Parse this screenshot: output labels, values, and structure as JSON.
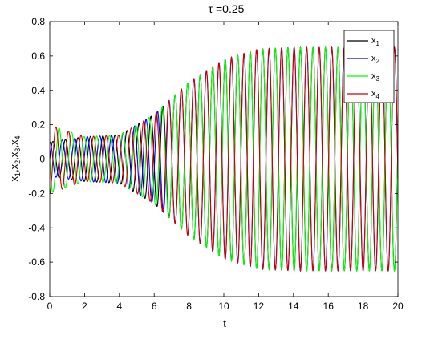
{
  "chart_data": {
    "type": "line",
    "title": "τ =0.25",
    "xlabel": "t",
    "ylabel_parts": [
      "x",
      "1",
      ",x",
      "2",
      ",x",
      "3",
      ",x",
      "4"
    ],
    "xlim": [
      0,
      20
    ],
    "ylim": [
      -0.8,
      0.8
    ],
    "x_ticks": [
      "0",
      "2",
      "4",
      "6",
      "8",
      "10",
      "12",
      "14",
      "16",
      "18",
      "20"
    ],
    "y_ticks": [
      "0.8",
      "0.6",
      "0.4",
      "0.2",
      "0",
      "-0.2",
      "-0.4",
      "-0.6",
      "-0.8"
    ],
    "grid": false,
    "legend_position": "top-right",
    "series": [
      {
        "name": "x1",
        "label_main": "x",
        "label_sub": "1",
        "color": "#000000",
        "t": [
          0,
          2,
          4,
          6,
          8,
          10,
          12,
          14,
          16,
          18,
          20
        ],
        "amplitude": [
          0.1,
          0.13,
          0.14,
          0.26,
          0.45,
          0.58,
          0.64,
          0.65,
          0.65,
          0.65,
          0.65
        ]
      },
      {
        "name": "x2",
        "label_main": "x",
        "label_sub": "2",
        "color": "#0000ff",
        "t": [
          0,
          2,
          4,
          6,
          8,
          10,
          12,
          14,
          16,
          18,
          20
        ],
        "amplitude": [
          0.1,
          0.13,
          0.14,
          0.26,
          0.45,
          0.58,
          0.64,
          0.65,
          0.65,
          0.65,
          0.65
        ]
      },
      {
        "name": "x3",
        "label_main": "x",
        "label_sub": "3",
        "color": "#00ff00",
        "t": [
          0,
          2,
          4,
          6,
          8,
          10,
          12,
          14,
          16,
          18,
          20
        ],
        "amplitude": [
          0.2,
          0.13,
          0.14,
          0.26,
          0.45,
          0.58,
          0.64,
          0.65,
          0.65,
          0.65,
          0.65
        ]
      },
      {
        "name": "x4",
        "label_main": "x",
        "label_sub": "4",
        "color": "#cc0000",
        "t": [
          0,
          2,
          4,
          6,
          8,
          10,
          12,
          14,
          16,
          18,
          20
        ],
        "amplitude": [
          0.2,
          0.13,
          0.14,
          0.26,
          0.45,
          0.58,
          0.64,
          0.65,
          0.65,
          0.65,
          0.65
        ]
      }
    ],
    "oscillation_period": 0.72
  }
}
